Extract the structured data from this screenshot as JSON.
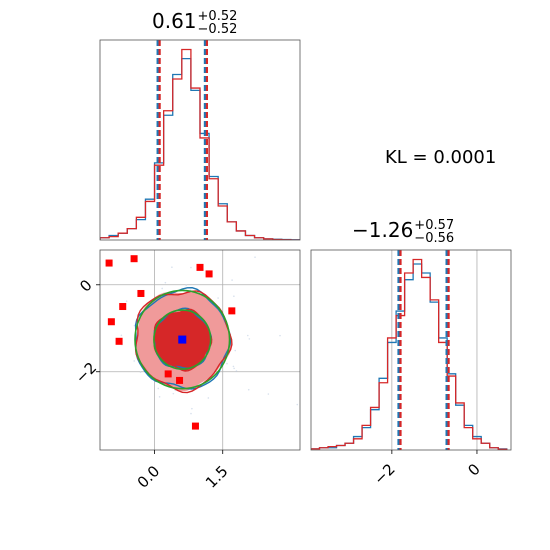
{
  "annotation": "KL = 0.0001",
  "chart_data": [
    {
      "type": "histogram",
      "panel": "top-left",
      "title": {
        "value": "0.61",
        "plus": "+0.52",
        "minus": "−0.52"
      },
      "xlim": [
        -1.2,
        3.2
      ],
      "quantiles": [
        0.09,
        0.61,
        1.13
      ],
      "grid": true,
      "series": [
        {
          "name": "",
          "color": "#1f77b4",
          "centers": [
            -1.1,
            -0.9,
            -0.7,
            -0.5,
            -0.3,
            -0.1,
            0.1,
            0.3,
            0.5,
            0.7,
            0.9,
            1.1,
            1.3,
            1.5,
            1.7,
            1.9,
            2.1,
            2.3,
            2.5,
            2.7,
            2.9,
            3.1
          ],
          "values": [
            1,
            2,
            3,
            5,
            9,
            18,
            34,
            55,
            73,
            80,
            66,
            47,
            28,
            16,
            8,
            4,
            2,
            1,
            0.5,
            0.3,
            0.2,
            0.1
          ]
        },
        {
          "name": "",
          "color": "#d62728",
          "centers": [
            -1.1,
            -0.9,
            -0.7,
            -0.5,
            -0.3,
            -0.1,
            0.1,
            0.3,
            0.5,
            0.7,
            0.9,
            1.1,
            1.3,
            1.5,
            1.7,
            1.9,
            2.1,
            2.3,
            2.5,
            2.7,
            2.9,
            3.1
          ],
          "values": [
            1,
            1.5,
            3,
            5,
            10,
            17,
            33,
            57,
            71,
            84,
            67,
            45,
            27,
            15,
            8,
            4,
            2,
            1,
            0.5,
            0.2,
            0.1,
            0
          ]
        }
      ]
    },
    {
      "type": "histogram",
      "panel": "bottom-right",
      "title": {
        "value": "−1.26",
        "plus": "+0.57",
        "minus": "−0.56"
      },
      "xlim": [
        -3.9,
        0.8
      ],
      "xticks": [
        {
          "v": -2,
          "label": "−2"
        },
        {
          "v": 0,
          "label": "0"
        }
      ],
      "quantiles": [
        -1.82,
        -1.26,
        -0.69
      ],
      "grid": true,
      "series": [
        {
          "name": "",
          "color": "#1f77b4",
          "centers": [
            -3.8,
            -3.6,
            -3.4,
            -3.2,
            -3.0,
            -2.8,
            -2.6,
            -2.4,
            -2.2,
            -2.0,
            -1.8,
            -1.6,
            -1.4,
            -1.2,
            -1.0,
            -0.8,
            -0.6,
            -0.4,
            -0.2,
            0.0,
            0.2,
            0.4,
            0.6
          ],
          "values": [
            0.5,
            1,
            1,
            2,
            3,
            6,
            10,
            18,
            32,
            48,
            62,
            76,
            83,
            79,
            66,
            50,
            34,
            20,
            11,
            6,
            3,
            1,
            0.5
          ]
        },
        {
          "name": "",
          "color": "#d62728",
          "centers": [
            -3.8,
            -3.6,
            -3.4,
            -3.2,
            -3.0,
            -2.8,
            -2.6,
            -2.4,
            -2.2,
            -2.0,
            -1.8,
            -1.6,
            -1.4,
            -1.2,
            -1.0,
            -0.8,
            -0.6,
            -0.4,
            -0.2,
            0.0,
            0.2,
            0.4,
            0.6
          ],
          "values": [
            0.5,
            1,
            1.5,
            2,
            3,
            5,
            11,
            19,
            30,
            50,
            60,
            79,
            85,
            77,
            67,
            48,
            33,
            21,
            10,
            5,
            3,
            1,
            0.3
          ]
        }
      ]
    },
    {
      "type": "contour",
      "panel": "bottom-left",
      "xlim": [
        -1.2,
        3.2
      ],
      "ylim": [
        -3.8,
        0.8
      ],
      "xticks": [
        {
          "v": 0,
          "label": "0.0"
        },
        {
          "v": 1.5,
          "label": "1.5"
        }
      ],
      "yticks": [
        {
          "v": 0,
          "label": "0"
        },
        {
          "v": -2,
          "label": "−2"
        }
      ],
      "grid": true,
      "center": [
        0.61,
        -1.26
      ],
      "sigma": [
        0.52,
        0.565
      ],
      "levels_sigma": [
        1.2,
        2.0
      ],
      "fill_colors": [
        "#d62728",
        "#f09a9a"
      ],
      "series": [
        {
          "name": "",
          "color": "#1f77b4",
          "kind": "contour"
        },
        {
          "name": "",
          "color": "#d62728",
          "kind": "contour"
        },
        {
          "name": "",
          "color": "#2ca02c",
          "kind": "ellipse"
        }
      ],
      "outliers": [
        [
          -1.0,
          0.5
        ],
        [
          -0.45,
          0.6
        ],
        [
          1.0,
          0.4
        ],
        [
          -0.95,
          -0.85
        ],
        [
          -0.78,
          -1.3
        ],
        [
          0.3,
          -2.05
        ],
        [
          0.55,
          -2.2
        ],
        [
          -0.7,
          -0.5
        ],
        [
          1.7,
          -0.6
        ],
        [
          0.9,
          -3.25
        ],
        [
          -0.3,
          -0.2
        ],
        [
          1.2,
          0.25
        ]
      ],
      "truth": [
        0.61,
        -1.26
      ],
      "truth_color": "#0000ff"
    }
  ]
}
